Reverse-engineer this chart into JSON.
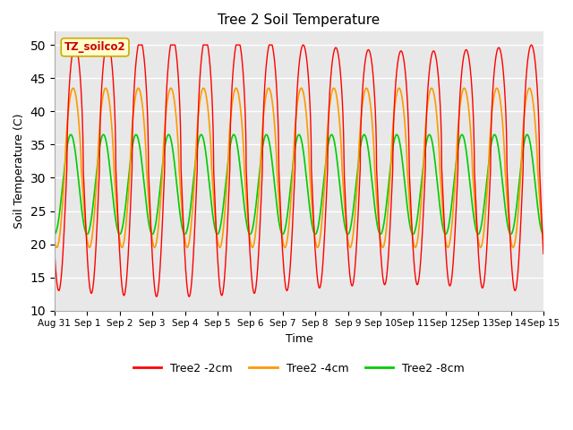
{
  "title": "Tree 2 Soil Temperature",
  "xlabel": "Time",
  "ylabel": "Soil Temperature (C)",
  "ylim": [
    10,
    52
  ],
  "yticks": [
    10,
    15,
    20,
    25,
    30,
    35,
    40,
    45,
    50
  ],
  "bg_color": "#e8e8e8",
  "legend_label": "TZ_soilco2",
  "legend_box_color": "#ffffcc",
  "legend_box_edge": "#ccaa00",
  "line_colors": {
    "2cm": "#ff0000",
    "4cm": "#ff9900",
    "8cm": "#00cc00"
  },
  "line_labels": {
    "2cm": "Tree2 -2cm",
    "4cm": "Tree2 -4cm",
    "8cm": "Tree2 -8cm"
  },
  "x_tick_labels": [
    "Aug 31",
    "Sep 1",
    "Sep 2",
    "Sep 3",
    "Sep 4",
    "Sep 5",
    "Sep 6",
    "Sep 7",
    "Sep 8",
    "Sep 9",
    "Sep 10",
    "Sep 11",
    "Sep 12",
    "Sep 13",
    "Sep 14",
    "Sep 15"
  ],
  "num_days": 16,
  "samples_per_day": 144,
  "figsize": [
    6.4,
    4.8
  ],
  "dpi": 100
}
